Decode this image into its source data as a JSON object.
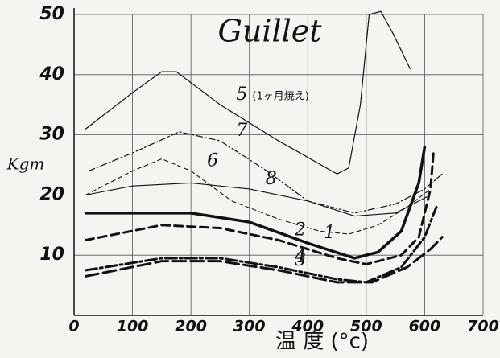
{
  "chart_data": {
    "type": "line",
    "title": "Guillet",
    "x_label": "温 度 (°c)",
    "y_label": "Kgm",
    "annotation": "(1ヶ月焼え)",
    "xlim": [
      0,
      700
    ],
    "ylim": [
      0,
      50
    ],
    "xticks": [
      0,
      100,
      200,
      300,
      400,
      500,
      600,
      700
    ],
    "yticks": [
      10,
      20,
      30,
      40,
      50
    ],
    "grid": true,
    "series": [
      {
        "name": "5",
        "color": "#111111",
        "width": 1.2,
        "dash": "none",
        "x": [
          20,
          100,
          150,
          175,
          250,
          350,
          450,
          470,
          490,
          505,
          525,
          545,
          575
        ],
        "values": [
          31,
          37,
          40.5,
          40.5,
          35,
          29,
          23.5,
          24.5,
          35,
          50,
          50.5,
          47,
          41
        ]
      },
      {
        "name": "7",
        "color": "#111111",
        "width": 1.2,
        "dash": "8,3,2,3",
        "x": [
          25,
          100,
          180,
          250,
          330,
          400,
          480,
          550,
          600,
          630
        ],
        "values": [
          24,
          27,
          30.5,
          29,
          24,
          19,
          17,
          18.5,
          21,
          23.5
        ]
      },
      {
        "name": "6",
        "color": "#111111",
        "width": 1.1,
        "dash": "5,4",
        "x": [
          20,
          100,
          150,
          200,
          270,
          350,
          420,
          470,
          520,
          570,
          610
        ],
        "values": [
          20,
          24,
          26,
          24,
          19,
          16,
          14,
          13.5,
          15,
          18,
          21
        ]
      },
      {
        "name": "8",
        "color": "#111111",
        "width": 1.1,
        "dash": "none",
        "x": [
          20,
          100,
          200,
          300,
          400,
          480,
          550,
          590,
          610
        ],
        "values": [
          20,
          21.5,
          22,
          21,
          19,
          16.5,
          17,
          19,
          20
        ]
      },
      {
        "name": "1",
        "color": "#111111",
        "width": 3.5,
        "dash": "none",
        "x": [
          20,
          200,
          300,
          400,
          480,
          520,
          560,
          590,
          600
        ],
        "values": [
          17,
          17,
          15.5,
          12,
          9.5,
          10.5,
          14,
          22,
          28
        ]
      },
      {
        "name": "2",
        "color": "#111111",
        "width": 3,
        "dash": "10,6",
        "x": [
          20,
          150,
          250,
          350,
          450,
          500,
          560,
          590,
          610,
          615
        ],
        "values": [
          12.5,
          15,
          14.5,
          12.5,
          9.5,
          8.5,
          10,
          13,
          21,
          27
        ]
      },
      {
        "name": "4",
        "color": "#111111",
        "width": 3,
        "dash": "14,4,3,4",
        "x": [
          20,
          150,
          250,
          350,
          450,
          500,
          560,
          600,
          620
        ],
        "values": [
          7.5,
          9.5,
          9.5,
          8,
          6,
          5.5,
          8,
          13,
          18
        ]
      },
      {
        "name": "3",
        "color": "#111111",
        "width": 3,
        "dash": "16,6",
        "x": [
          20,
          150,
          250,
          350,
          450,
          510,
          570,
          610,
          630
        ],
        "values": [
          6.5,
          9,
          9,
          7.5,
          5.5,
          5.5,
          8,
          11,
          13
        ]
      }
    ]
  }
}
